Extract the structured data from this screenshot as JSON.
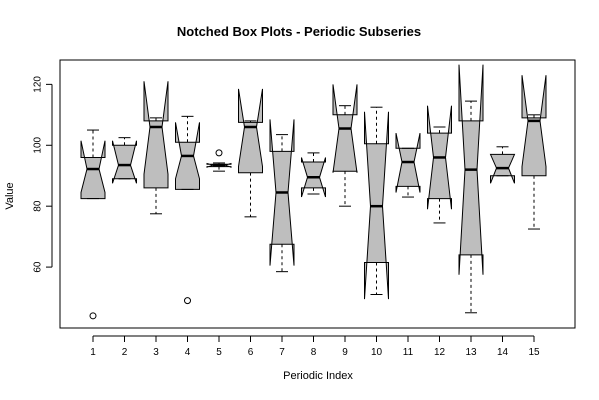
{
  "chart_data": {
    "type": "box",
    "title": "Notched Box Plots - Periodic Subseries",
    "xlabel": "Periodic Index",
    "ylabel": "Value",
    "ylim": [
      40,
      128
    ],
    "y_ticks": [
      60,
      80,
      100,
      120
    ],
    "grid": false,
    "box_fill": "#bebebe",
    "categories": [
      "1",
      "2",
      "3",
      "4",
      "5",
      "6",
      "7",
      "8",
      "9",
      "10",
      "11",
      "12",
      "13",
      "14",
      "15"
    ],
    "boxes": [
      {
        "whisker_low": 82.5,
        "q1": 82.5,
        "median": 92.2,
        "q3": 96,
        "whisker_high": 105,
        "notch_low": 84.5,
        "notch_high": 101.5,
        "outliers": [
          44
        ]
      },
      {
        "whisker_low": 89,
        "q1": 89,
        "median": 93.5,
        "q3": 100,
        "whisker_high": 102.5,
        "notch_low": 87.5,
        "notch_high": 101.5,
        "outliers": []
      },
      {
        "whisker_low": 77.5,
        "q1": 86,
        "median": 106,
        "q3": 108,
        "whisker_high": 109,
        "notch_low": 90.5,
        "notch_high": 121,
        "outliers": []
      },
      {
        "whisker_low": 85.5,
        "q1": 85.5,
        "median": 96.5,
        "q3": 101,
        "whisker_high": 109.5,
        "notch_low": 89,
        "notch_high": 107.5,
        "outliers": [
          49
        ]
      },
      {
        "whisker_low": 91.5,
        "q1": 93,
        "median": 93.5,
        "q3": 93.8,
        "whisker_high": 94.2,
        "notch_low": 92.8,
        "notch_high": 94,
        "outliers": [
          97.5
        ]
      },
      {
        "whisker_low": 76.5,
        "q1": 91,
        "median": 106,
        "q3": 107.5,
        "whisker_high": 108,
        "notch_low": 93,
        "notch_high": 118.5,
        "outliers": []
      },
      {
        "whisker_low": 58.5,
        "q1": 67.5,
        "median": 84.5,
        "q3": 98,
        "whisker_high": 103.5,
        "notch_low": 60.5,
        "notch_high": 108.5,
        "outliers": []
      },
      {
        "whisker_low": 84,
        "q1": 86,
        "median": 89.5,
        "q3": 94.5,
        "whisker_high": 97.5,
        "notch_low": 83,
        "notch_high": 96,
        "outliers": []
      },
      {
        "whisker_low": 80,
        "q1": 91.5,
        "median": 105.5,
        "q3": 110,
        "whisker_high": 113,
        "notch_low": 91,
        "notch_high": 120,
        "outliers": []
      },
      {
        "whisker_low": 51,
        "q1": 61.5,
        "median": 80,
        "q3": 100.5,
        "whisker_high": 112.5,
        "notch_low": 49.5,
        "notch_high": 111,
        "outliers": []
      },
      {
        "whisker_low": 83,
        "q1": 86.5,
        "median": 94.5,
        "q3": 99,
        "whisker_high": 99,
        "notch_low": 84.5,
        "notch_high": 104,
        "outliers": []
      },
      {
        "whisker_low": 74.5,
        "q1": 82.5,
        "median": 96,
        "q3": 104,
        "whisker_high": 106,
        "notch_low": 79,
        "notch_high": 113,
        "outliers": []
      },
      {
        "whisker_low": 45,
        "q1": 64,
        "median": 92,
        "q3": 108,
        "whisker_high": 114.5,
        "notch_low": 57.5,
        "notch_high": 126.5,
        "outliers": []
      },
      {
        "whisker_low": 90,
        "q1": 90,
        "median": 92.5,
        "q3": 97,
        "whisker_high": 99.5,
        "notch_low": 87.5,
        "notch_high": 97,
        "outliers": []
      },
      {
        "whisker_low": 72.5,
        "q1": 90,
        "median": 108,
        "q3": 109,
        "whisker_high": 110,
        "notch_low": 93,
        "notch_high": 123,
        "outliers": []
      }
    ]
  }
}
